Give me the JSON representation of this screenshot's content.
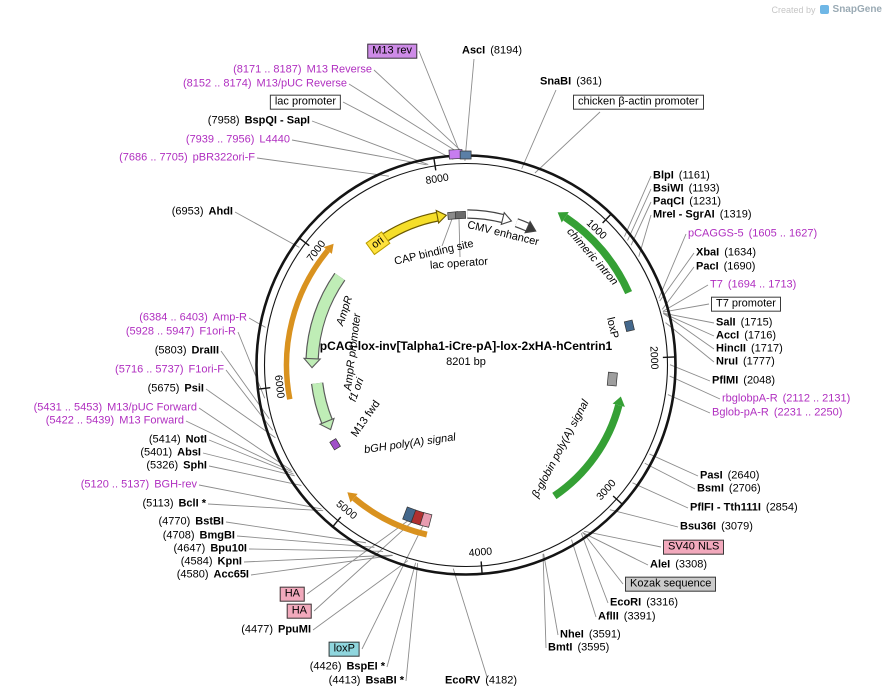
{
  "watermark": {
    "created_by": "Created by",
    "brand": "SnapGene"
  },
  "plasmid": {
    "name": "pCAG-lox-inv[Talpha1-iCre-pA]-lox-2xHA-hCentrin1",
    "size": "8201 bp",
    "length_bp": 8201
  },
  "ticks": [
    "1000",
    "2000",
    "3000",
    "4000",
    "5000",
    "6000",
    "7000",
    "8000"
  ],
  "colors": {
    "primer_text": "#B02FC0",
    "arc_yellow": "#F5DE2A",
    "arc_white": "#FFFFFF",
    "arc_green": "#35A035",
    "arc_pale_green": "#BFEDB6",
    "arc_orange": "#D9921F",
    "marker_purple": "#C77DF0",
    "marker_blue": "#5B7FA6",
    "marker_slate": "#44688C",
    "marker_gray": "#9E9E9E",
    "marker_pink": "#E89CB0",
    "marker_crimson": "#B03030",
    "ring": "#141414"
  },
  "labels": [
    {
      "id": "m13-rev-label",
      "kind": "box-purple",
      "segments": [
        {
          "text": "M13 rev",
          "bold": false
        }
      ]
    },
    {
      "id": "m13-reverse-primer",
      "kind": "primer",
      "segments": [
        {
          "text": "(8171 .. 8187)",
          "bold": false
        },
        {
          "text": "M13 Reverse",
          "bold": false
        }
      ]
    },
    {
      "id": "m13-puc-reverse-primer",
      "kind": "primer",
      "segments": [
        {
          "text": "(8152 .. 8174)",
          "bold": false
        },
        {
          "text": "M13/pUC Reverse",
          "bold": false
        }
      ]
    },
    {
      "id": "lac-promoter-label",
      "kind": "box-white",
      "segments": [
        {
          "text": "lac promoter",
          "bold": false
        }
      ]
    },
    {
      "id": "bspqi-sapi",
      "kind": "enzyme",
      "segments": [
        {
          "text": "(7958)",
          "bold": false
        },
        {
          "text": "BspQI - SapI",
          "bold": true
        }
      ]
    },
    {
      "id": "l4440-primer",
      "kind": "primer",
      "segments": [
        {
          "text": "(7939 .. 7956)",
          "bold": false
        },
        {
          "text": "L4440",
          "bold": false
        }
      ]
    },
    {
      "id": "pbr322ori-f-primer",
      "kind": "primer",
      "segments": [
        {
          "text": "(7686 .. 7705)",
          "bold": false
        },
        {
          "text": "pBR322ori-F",
          "bold": false
        }
      ]
    },
    {
      "id": "ahdi",
      "kind": "enzyme",
      "segments": [
        {
          "text": "(6953)",
          "bold": false
        },
        {
          "text": "AhdI",
          "bold": true
        }
      ]
    },
    {
      "id": "amp-r-primer",
      "kind": "primer",
      "segments": [
        {
          "text": "(6384 .. 6403)",
          "bold": false
        },
        {
          "text": "Amp-R",
          "bold": false
        }
      ]
    },
    {
      "id": "f1ori-r-primer",
      "kind": "primer",
      "segments": [
        {
          "text": "(5928 .. 5947)",
          "bold": false
        },
        {
          "text": "F1ori-R",
          "bold": false
        }
      ]
    },
    {
      "id": "draiii",
      "kind": "enzyme",
      "segments": [
        {
          "text": "(5803)",
          "bold": false
        },
        {
          "text": "DraIII",
          "bold": true
        }
      ]
    },
    {
      "id": "f1ori-f-primer",
      "kind": "primer",
      "segments": [
        {
          "text": "(5716 .. 5737)",
          "bold": false
        },
        {
          "text": "F1ori-F",
          "bold": false
        }
      ]
    },
    {
      "id": "psii",
      "kind": "enzyme",
      "segments": [
        {
          "text": "(5675)",
          "bold": false
        },
        {
          "text": "PsiI",
          "bold": true
        }
      ]
    },
    {
      "id": "m13-puc-forward-primer",
      "kind": "primer",
      "segments": [
        {
          "text": "(5431 .. 5453)",
          "bold": false
        },
        {
          "text": "M13/pUC Forward",
          "bold": false
        }
      ]
    },
    {
      "id": "m13-forward-primer",
      "kind": "primer",
      "segments": [
        {
          "text": "(5422 .. 5439)",
          "bold": false
        },
        {
          "text": "M13 Forward",
          "bold": false
        }
      ]
    },
    {
      "id": "noti",
      "kind": "enzyme",
      "segments": [
        {
          "text": "(5414)",
          "bold": false
        },
        {
          "text": "NotI",
          "bold": true
        }
      ]
    },
    {
      "id": "absi",
      "kind": "enzyme",
      "segments": [
        {
          "text": "(5401)",
          "bold": false
        },
        {
          "text": "AbsI",
          "bold": true
        }
      ]
    },
    {
      "id": "sphi",
      "kind": "enzyme",
      "segments": [
        {
          "text": "(5326)",
          "bold": false
        },
        {
          "text": "SphI",
          "bold": true
        }
      ]
    },
    {
      "id": "bgh-rev-primer",
      "kind": "primer",
      "segments": [
        {
          "text": "(5120 .. 5137)",
          "bold": false
        },
        {
          "text": "BGH-rev",
          "bold": false
        }
      ]
    },
    {
      "id": "bcli",
      "kind": "enzyme",
      "segments": [
        {
          "text": "(5113)",
          "bold": false
        },
        {
          "text": "BclI *",
          "bold": true
        }
      ]
    },
    {
      "id": "bstbi",
      "kind": "enzyme",
      "segments": [
        {
          "text": "(4770)",
          "bold": false
        },
        {
          "text": "BstBI",
          "bold": true
        }
      ]
    },
    {
      "id": "bmgbi",
      "kind": "enzyme",
      "segments": [
        {
          "text": "(4708)",
          "bold": false
        },
        {
          "text": "BmgBI",
          "bold": true
        }
      ]
    },
    {
      "id": "bpu10i",
      "kind": "enzyme",
      "segments": [
        {
          "text": "(4647)",
          "bold": false
        },
        {
          "text": "Bpu10I",
          "bold": true
        }
      ]
    },
    {
      "id": "kpni",
      "kind": "enzyme",
      "segments": [
        {
          "text": "(4584)",
          "bold": false
        },
        {
          "text": "KpnI",
          "bold": true
        }
      ]
    },
    {
      "id": "acc65i",
      "kind": "enzyme",
      "segments": [
        {
          "text": "(4580)",
          "bold": false
        },
        {
          "text": "Acc65I",
          "bold": true
        }
      ]
    },
    {
      "id": "ha-tag-1",
      "kind": "box-pink",
      "segments": [
        {
          "text": "HA",
          "bold": false
        }
      ]
    },
    {
      "id": "ha-tag-2",
      "kind": "box-pink",
      "segments": [
        {
          "text": "HA",
          "bold": false
        }
      ]
    },
    {
      "id": "ppumi",
      "kind": "enzyme",
      "segments": [
        {
          "text": "(4477)",
          "bold": false
        },
        {
          "text": "PpuMI",
          "bold": true
        }
      ]
    },
    {
      "id": "loxp-box-label",
      "kind": "box-teal",
      "segments": [
        {
          "text": "loxP",
          "bold": false
        }
      ]
    },
    {
      "id": "bspei",
      "kind": "enzyme",
      "segments": [
        {
          "text": "(4426)",
          "bold": false
        },
        {
          "text": "BspEI *",
          "bold": true
        }
      ]
    },
    {
      "id": "bsabi",
      "kind": "enzyme",
      "segments": [
        {
          "text": "(4413)",
          "bold": false
        },
        {
          "text": "BsaBI *",
          "bold": true
        }
      ]
    },
    {
      "id": "asci",
      "kind": "enzyme",
      "segments": [
        {
          "text": "AscI",
          "bold": true
        },
        {
          "text": "(8194)",
          "bold": false
        }
      ]
    },
    {
      "id": "snabi",
      "kind": "enzyme",
      "segments": [
        {
          "text": "SnaBI",
          "bold": true
        },
        {
          "text": "(361)",
          "bold": false
        }
      ]
    },
    {
      "id": "chicken-beta-actin-promoter-label",
      "kind": "box-white",
      "segments": [
        {
          "text": "chicken β-actin promoter",
          "bold": false
        }
      ]
    },
    {
      "id": "blpi",
      "kind": "enzyme",
      "segments": [
        {
          "text": "BlpI",
          "bold": true
        },
        {
          "text": "(1161)",
          "bold": false
        }
      ]
    },
    {
      "id": "bsiwi",
      "kind": "enzyme",
      "segments": [
        {
          "text": "BsiWI",
          "bold": true
        },
        {
          "text": "(1193)",
          "bold": false
        }
      ]
    },
    {
      "id": "paqci",
      "kind": "enzyme",
      "segments": [
        {
          "text": "PaqCI",
          "bold": true
        },
        {
          "text": "(1231)",
          "bold": false
        }
      ]
    },
    {
      "id": "mrei-sgrai",
      "kind": "enzyme",
      "segments": [
        {
          "text": "MreI - SgrAI",
          "bold": true
        },
        {
          "text": "(1319)",
          "bold": false
        }
      ]
    },
    {
      "id": "pcaggs-5-primer",
      "kind": "primer",
      "segments": [
        {
          "text": "pCAGGS-5",
          "bold": false
        },
        {
          "text": "(1605 .. 1627)",
          "bold": false
        }
      ]
    },
    {
      "id": "xbai",
      "kind": "enzyme",
      "segments": [
        {
          "text": "XbaI",
          "bold": true
        },
        {
          "text": "(1634)",
          "bold": false
        }
      ]
    },
    {
      "id": "paci",
      "kind": "enzyme",
      "segments": [
        {
          "text": "PacI",
          "bold": true
        },
        {
          "text": "(1690)",
          "bold": false
        }
      ]
    },
    {
      "id": "t7-primer",
      "kind": "primer",
      "segments": [
        {
          "text": "T7",
          "bold": false
        },
        {
          "text": "(1694 .. 1713)",
          "bold": false
        }
      ]
    },
    {
      "id": "t7-promoter-label",
      "kind": "box-white",
      "segments": [
        {
          "text": "T7 promoter",
          "bold": false
        }
      ]
    },
    {
      "id": "sali",
      "kind": "enzyme",
      "segments": [
        {
          "text": "SalI",
          "bold": true
        },
        {
          "text": "(1715)",
          "bold": false
        }
      ]
    },
    {
      "id": "acci",
      "kind": "enzyme",
      "segments": [
        {
          "text": "AccI",
          "bold": true
        },
        {
          "text": "(1716)",
          "bold": false
        }
      ]
    },
    {
      "id": "hincii",
      "kind": "enzyme",
      "segments": [
        {
          "text": "HincII",
          "bold": true
        },
        {
          "text": "(1717)",
          "bold": false
        }
      ]
    },
    {
      "id": "nrui",
      "kind": "enzyme",
      "segments": [
        {
          "text": "NruI",
          "bold": true
        },
        {
          "text": "(1777)",
          "bold": false
        }
      ]
    },
    {
      "id": "pflmi",
      "kind": "enzyme",
      "segments": [
        {
          "text": "PflMI",
          "bold": true
        },
        {
          "text": "(2048)",
          "bold": false
        }
      ]
    },
    {
      "id": "rbglobpa-r-primer",
      "kind": "primer",
      "segments": [
        {
          "text": "rbglobpA-R",
          "bold": false
        },
        {
          "text": "(2112 .. 2131)",
          "bold": false
        }
      ]
    },
    {
      "id": "bglob-pa-r-primer",
      "kind": "primer",
      "segments": [
        {
          "text": "Bglob-pA-R",
          "bold": false
        },
        {
          "text": "(2231 .. 2250)",
          "bold": false
        }
      ]
    },
    {
      "id": "pasi",
      "kind": "enzyme",
      "segments": [
        {
          "text": "PasI",
          "bold": true
        },
        {
          "text": "(2640)",
          "bold": false
        }
      ]
    },
    {
      "id": "bsmi",
      "kind": "enzyme",
      "segments": [
        {
          "text": "BsmI",
          "bold": true
        },
        {
          "text": "(2706)",
          "bold": false
        }
      ]
    },
    {
      "id": "pflfi-tth111i",
      "kind": "enzyme",
      "segments": [
        {
          "text": "PflFI - Tth111I",
          "bold": true
        },
        {
          "text": "(2854)",
          "bold": false
        }
      ]
    },
    {
      "id": "bsu36i",
      "kind": "enzyme",
      "segments": [
        {
          "text": "Bsu36I",
          "bold": true
        },
        {
          "text": "(3079)",
          "bold": false
        }
      ]
    },
    {
      "id": "sv40-nls-label",
      "kind": "box-pink",
      "segments": [
        {
          "text": "SV40 NLS",
          "bold": false
        }
      ]
    },
    {
      "id": "alei",
      "kind": "enzyme",
      "segments": [
        {
          "text": "AleI",
          "bold": true
        },
        {
          "text": "(3308)",
          "bold": false
        }
      ]
    },
    {
      "id": "kozak-sequence-label",
      "kind": "box-gray",
      "segments": [
        {
          "text": "Kozak sequence",
          "bold": false
        }
      ]
    },
    {
      "id": "ecori",
      "kind": "enzyme",
      "segments": [
        {
          "text": "EcoRI",
          "bold": true
        },
        {
          "text": "(3316)",
          "bold": false
        }
      ]
    },
    {
      "id": "aflii",
      "kind": "enzyme",
      "segments": [
        {
          "text": "AflII",
          "bold": true
        },
        {
          "text": "(3391)",
          "bold": false
        }
      ]
    },
    {
      "id": "nhei",
      "kind": "enzyme",
      "segments": [
        {
          "text": "NheI",
          "bold": true
        },
        {
          "text": "(3591)",
          "bold": false
        }
      ]
    },
    {
      "id": "bmti",
      "kind": "enzyme",
      "segments": [
        {
          "text": "BmtI",
          "bold": true
        },
        {
          "text": "(3595)",
          "bold": false
        }
      ]
    },
    {
      "id": "ecorv",
      "kind": "enzyme",
      "segments": [
        {
          "text": "EcoRV",
          "bold": true
        },
        {
          "text": "(4182)",
          "bold": false
        }
      ]
    },
    {
      "id": "ori-label",
      "kind": "inside-box-yellow",
      "segments": [
        {
          "text": "ori",
          "bold": false
        }
      ]
    },
    {
      "id": "cap-binding-site-label",
      "kind": "inside",
      "segments": [
        {
          "text": "CAP binding site",
          "bold": false
        }
      ]
    },
    {
      "id": "lac-operator-label",
      "kind": "inside",
      "segments": [
        {
          "text": "lac operator",
          "bold": false
        }
      ]
    },
    {
      "id": "cmv-enhancer-label",
      "kind": "inside",
      "segments": [
        {
          "text": "CMV enhancer",
          "bold": false
        }
      ]
    },
    {
      "id": "chimeric-intron-label",
      "kind": "inside-italic",
      "segments": [
        {
          "text": "chimeric intron",
          "bold": false
        }
      ]
    },
    {
      "id": "loxp-inside-label",
      "kind": "inside",
      "segments": [
        {
          "text": "loxP",
          "bold": false
        }
      ]
    },
    {
      "id": "beta-globin-polya-label",
      "kind": "inside-italic",
      "segments": [
        {
          "text": "β-globin poly(A) signal",
          "bold": false
        }
      ]
    },
    {
      "id": "ampr-label",
      "kind": "inside-italic",
      "segments": [
        {
          "text": "AmpR",
          "bold": false
        }
      ]
    },
    {
      "id": "ampr-promoter-label",
      "kind": "inside-italic",
      "segments": [
        {
          "text": "AmpR promoter",
          "bold": false
        }
      ]
    },
    {
      "id": "f1-ori-label",
      "kind": "inside-italic",
      "segments": [
        {
          "text": "f1 ori",
          "bold": false
        }
      ]
    },
    {
      "id": "m13-fwd-label",
      "kind": "inside",
      "segments": [
        {
          "text": "M13 fwd",
          "bold": false
        }
      ]
    },
    {
      "id": "bgh-polya-label",
      "kind": "inside-italic",
      "segments": [
        {
          "text": "bGH poly(A) signal",
          "bold": false
        }
      ]
    }
  ]
}
